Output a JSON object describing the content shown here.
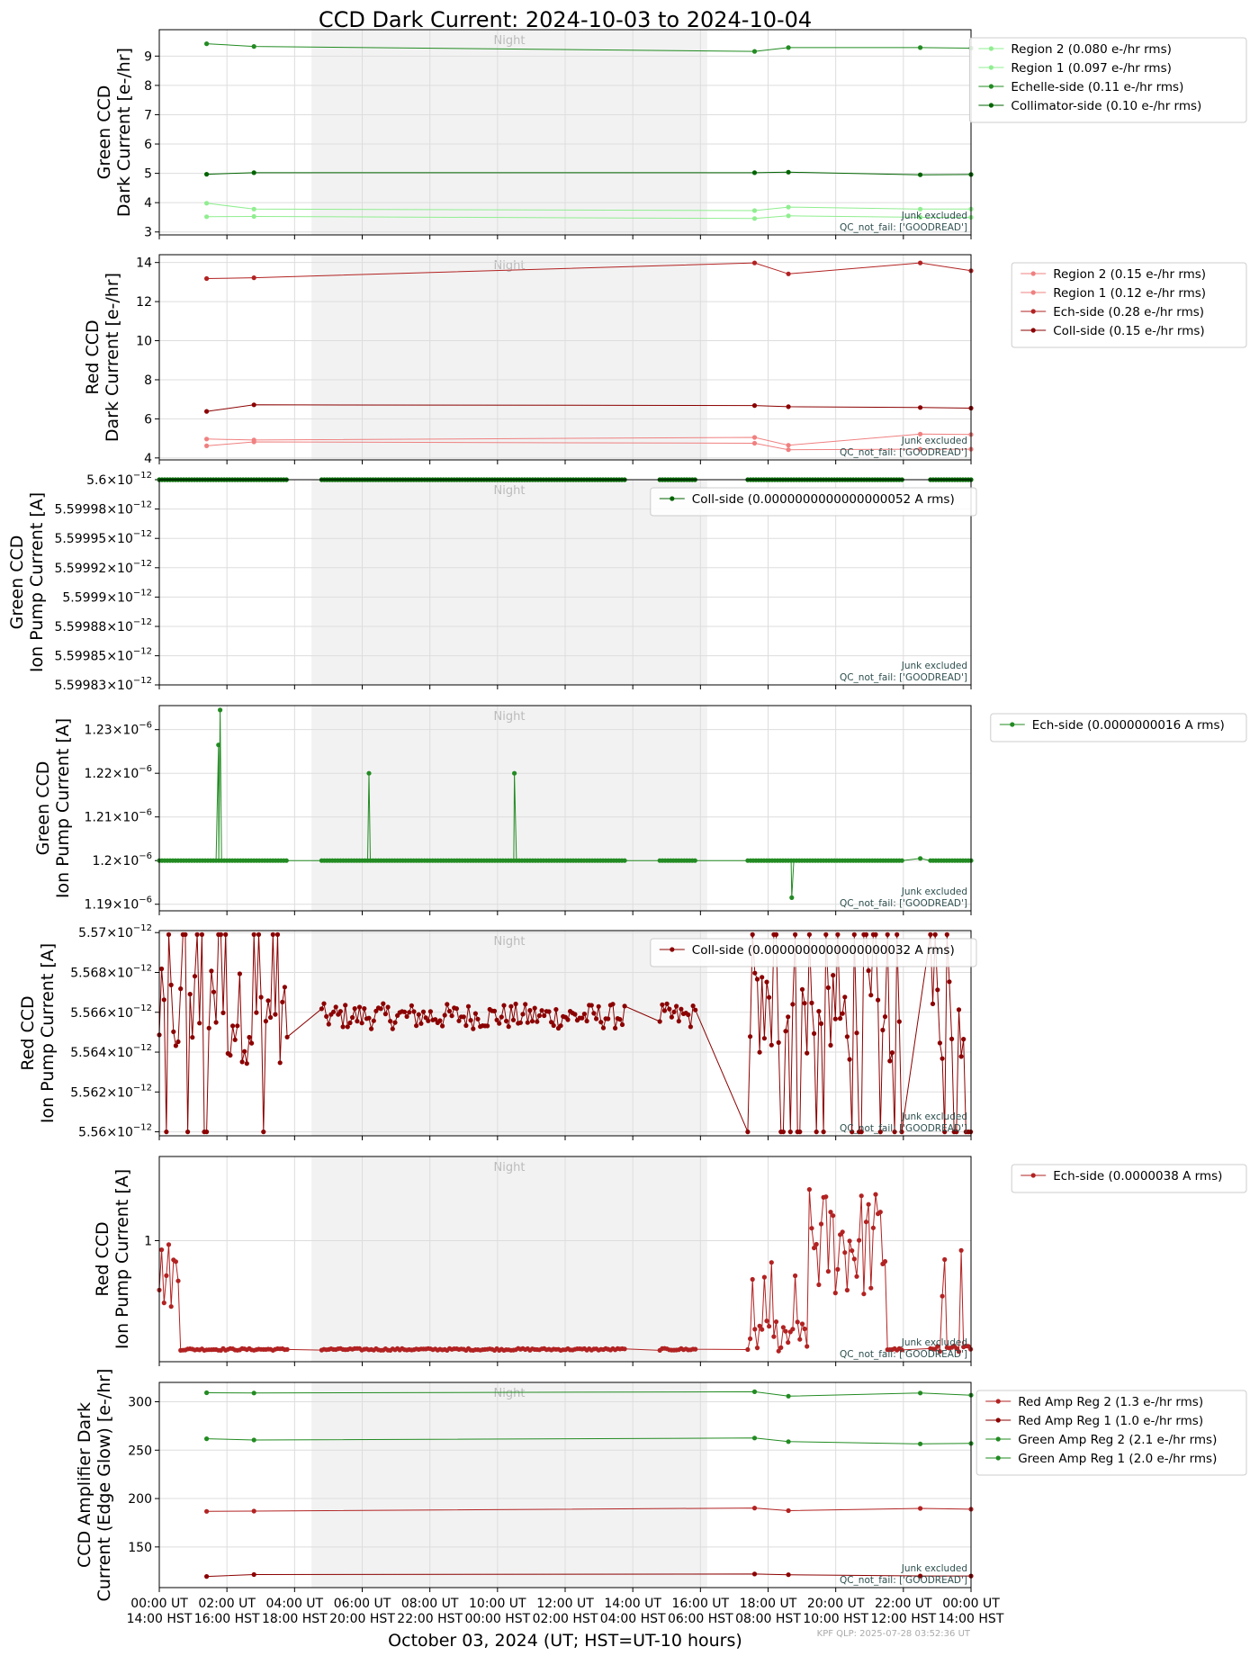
{
  "title": "CCD Dark Current: 2024-10-03 to 2024-10-04",
  "xlabel": "October 03, 2024 (UT; HST=UT-10 hours)",
  "footer": "KPF QLP: 2025-07-28 03:52:36 UT",
  "night_label": "Night",
  "notes": [
    "Junk excluded",
    "QC_not_fail: ['GOODREAD']"
  ],
  "x_ticks_ut": [
    "00:00 UT",
    "02:00 UT",
    "04:00 UT",
    "06:00 UT",
    "08:00 UT",
    "10:00 UT",
    "12:00 UT",
    "14:00 UT",
    "16:00 UT",
    "18:00 UT",
    "20:00 UT",
    "22:00 UT",
    "00:00 UT"
  ],
  "x_ticks_hst": [
    "14:00 HST",
    "16:00 HST",
    "18:00 HST",
    "20:00 HST",
    "22:00 HST",
    "00:00 HST",
    "02:00 HST",
    "04:00 HST",
    "06:00 HST",
    "08:00 HST",
    "10:00 HST",
    "12:00 HST",
    "14:00 HST"
  ],
  "colors": {
    "light_green": "#90ee90",
    "green": "#228b22",
    "dark_green": "#006400",
    "light_red": "#f08080",
    "red": "#b22222",
    "dark_red": "#8b0000",
    "night": "#f2f2f2"
  },
  "chart_data": [
    {
      "type": "line",
      "ylabel": [
        "Green CCD",
        "Dark Current [e-/hr]"
      ],
      "ylim": [
        2.9,
        9.9
      ],
      "yticks": [
        3,
        4,
        5,
        6,
        7,
        8,
        9
      ],
      "legend_placement": "outside-right",
      "night": [
        4.5,
        16.2
      ],
      "series": [
        {
          "name": "Region 2 (0.080 e-/hr rms)",
          "color": "#90ee90",
          "x": [
            1.4,
            2.8,
            17.6,
            18.6,
            22.5,
            24
          ],
          "y": [
            3.52,
            3.53,
            3.46,
            3.55,
            3.5,
            3.5
          ]
        },
        {
          "name": "Region 1 (0.097 e-/hr rms)",
          "color": "#90ee90",
          "x": [
            1.4,
            2.8,
            17.6,
            18.6,
            22.5,
            24
          ],
          "y": [
            3.98,
            3.78,
            3.73,
            3.85,
            3.78,
            3.78
          ]
        },
        {
          "name": "Echelle-side (0.11 e-/hr rms)",
          "color": "#228b22",
          "x": [
            1.4,
            2.8,
            17.6,
            18.6,
            22.5,
            24
          ],
          "y": [
            9.42,
            9.33,
            9.16,
            9.29,
            9.29,
            9.27
          ]
        },
        {
          "name": "Collimator-side (0.10 e-/hr rms)",
          "color": "#006400",
          "x": [
            1.4,
            2.8,
            17.6,
            18.6,
            22.5,
            24
          ],
          "y": [
            4.97,
            5.02,
            5.02,
            5.04,
            4.95,
            4.96
          ]
        }
      ]
    },
    {
      "type": "line",
      "ylabel": [
        "Red CCD",
        "Dark Current [e-/hr]"
      ],
      "ylim": [
        3.9,
        14.4
      ],
      "yticks": [
        4,
        6,
        8,
        10,
        12,
        14
      ],
      "legend_placement": "outside-right",
      "night": [
        4.5,
        16.2
      ],
      "series": [
        {
          "name": "Region 2 (0.15 e-/hr rms)",
          "color": "#f08080",
          "x": [
            1.4,
            2.8,
            17.6,
            18.6,
            22.5,
            24
          ],
          "y": [
            4.97,
            4.92,
            5.05,
            4.65,
            5.22,
            5.2
          ]
        },
        {
          "name": "Region 1 (0.12 e-/hr rms)",
          "color": "#f08080",
          "x": [
            1.4,
            2.8,
            17.6,
            18.6,
            22.5,
            24
          ],
          "y": [
            4.62,
            4.82,
            4.75,
            4.42,
            4.45,
            4.45
          ]
        },
        {
          "name": "Ech-side (0.28 e-/hr rms)",
          "color": "#b22222",
          "x": [
            1.4,
            2.8,
            17.6,
            18.6,
            22.5,
            24
          ],
          "y": [
            13.18,
            13.22,
            13.98,
            13.42,
            13.98,
            13.58
          ]
        },
        {
          "name": "Coll-side (0.15 e-/hr rms)",
          "color": "#8b0000",
          "x": [
            1.4,
            2.8,
            17.6,
            18.6,
            22.5,
            24
          ],
          "y": [
            6.38,
            6.72,
            6.68,
            6.62,
            6.58,
            6.55
          ]
        }
      ]
    },
    {
      "type": "line",
      "ylabel": [
        "Green CCD",
        "Ion Pump Current [A]"
      ],
      "ylim": [
        0.0,
        1.0
      ],
      "ytick_pos": [
        1.0,
        0.857,
        0.714,
        0.571,
        0.428,
        0.285,
        0.142,
        0.0
      ],
      "ytick_mantissa": [
        "5.6",
        "5.59998",
        "5.59995",
        "5.59992",
        "5.5999",
        "5.59988",
        "5.59985",
        "5.59983"
      ],
      "ytick_exp": "−12",
      "legend_placement": "upper-right",
      "night": [
        4.5,
        16.2
      ],
      "series": [
        {
          "name": "Coll-side (0.0000000000000000052 A rms)",
          "color": "#006400",
          "pattern": "flat_dense",
          "level": 1.0,
          "segments": [
            [
              0,
              3.8
            ],
            [
              4.8,
              13.8
            ],
            [
              14.8,
              15.9
            ],
            [
              17.4,
              22.0
            ],
            [
              22.8,
              24
            ]
          ]
        }
      ]
    },
    {
      "type": "line",
      "ylabel": [
        "Green CCD",
        "Ion Pump Current [A]"
      ],
      "ylim": [
        1.1885,
        1.2355
      ],
      "ytick_pos": [
        1.19,
        1.2,
        1.21,
        1.22,
        1.23
      ],
      "ytick_mantissa": [
        "1.19",
        "1.2",
        "1.21",
        "1.22",
        "1.23"
      ],
      "ytick_exp": "−6",
      "legend_placement": "outside-right",
      "night": [
        4.5,
        16.2
      ],
      "series": [
        {
          "name": "Ech-side (0.0000000016 A rms)",
          "color": "#228b22",
          "pattern": "flat_spikes",
          "level": 1.2,
          "segments": [
            [
              0,
              3.8
            ],
            [
              4.8,
              13.8
            ],
            [
              14.8,
              15.9
            ],
            [
              17.4,
              22.0
            ],
            [
              22.8,
              24
            ]
          ],
          "spikes": [
            [
              1.75,
              1.2265
            ],
            [
              1.8,
              1.2345
            ],
            [
              6.2,
              1.22
            ],
            [
              10.5,
              1.22
            ],
            [
              18.7,
              1.1915
            ],
            [
              22.5,
              1.2005
            ]
          ]
        }
      ]
    },
    {
      "type": "line",
      "ylabel": [
        "Red CCD",
        "Ion Pump Current [A]"
      ],
      "ylim": [
        5.5598,
        5.5701
      ],
      "ytick_pos": [
        5.56,
        5.562,
        5.564,
        5.566,
        5.568,
        5.57
      ],
      "ytick_mantissa": [
        "5.56",
        "5.562",
        "5.564",
        "5.566",
        "5.568",
        "5.57"
      ],
      "ytick_exp": "−12",
      "legend_placement": "upper-right",
      "night": [
        4.5,
        16.2
      ],
      "series": [
        {
          "name": "Coll-side (0.0000000000000000032 A rms)",
          "color": "#8b0000",
          "pattern": "noisy",
          "level": 5.5658,
          "amp": 0.0008,
          "segments": [
            [
              0,
              3.8
            ],
            [
              4.8,
              13.8
            ],
            [
              14.8,
              15.9
            ],
            [
              17.4,
              22.0
            ],
            [
              22.8,
              24
            ]
          ]
        }
      ]
    },
    {
      "type": "line",
      "ylabel": [
        "Red CCD",
        "Ion Pump Current [A]"
      ],
      "ylim": [
        0.0,
        1.0
      ],
      "ytick_pos": [
        0.59
      ],
      "ytick_mantissa": [
        "1"
      ],
      "legend_placement": "upper-right",
      "night": [
        4.5,
        16.2
      ],
      "series": [
        {
          "name": "Ech-side (0.0000038 A rms)",
          "color": "#b22222",
          "pattern": "bursty",
          "level": 0.06,
          "segments": [
            [
              0,
              3.8
            ],
            [
              4.8,
              13.8
            ],
            [
              14.8,
              15.9
            ],
            [
              17.4,
              22.0
            ],
            [
              22.8,
              24
            ]
          ]
        }
      ]
    },
    {
      "type": "line",
      "ylabel": [
        "CCD Amplifier Dark",
        "Current (Edge Glow) [e-/hr]"
      ],
      "ylim": [
        108,
        320
      ],
      "yticks": [
        150,
        200,
        250,
        300
      ],
      "legend_placement": "outside-right",
      "night": [
        4.5,
        16.2
      ],
      "series": [
        {
          "name": "Red Amp Reg 2 (1.3 e-/hr rms)",
          "color": "#b22222",
          "x": [
            1.4,
            2.8,
            17.6,
            18.6,
            22.5,
            24
          ],
          "y": [
            186.8,
            187.0,
            190.2,
            187.5,
            189.8,
            189.0
          ]
        },
        {
          "name": "Red Amp Reg 1 (1.0 e-/hr rms)",
          "color": "#8b0000",
          "x": [
            1.4,
            2.8,
            17.6,
            18.6,
            22.5,
            24
          ],
          "y": [
            119.5,
            121.5,
            122.0,
            121.3,
            120.0,
            120.0
          ]
        },
        {
          "name": "Green Amp Reg 2 (2.1 e-/hr rms)",
          "color": "#228b22",
          "x": [
            1.4,
            2.8,
            17.6,
            18.6,
            22.5,
            24
          ],
          "y": [
            261.8,
            260.5,
            262.5,
            258.8,
            256.5,
            257.0
          ]
        },
        {
          "name": "Green Amp Reg 1 (2.0 e-/hr rms)",
          "color": "#228b22",
          "x": [
            1.4,
            2.8,
            17.6,
            18.6,
            22.5,
            24
          ],
          "y": [
            309.3,
            309.0,
            310.3,
            305.8,
            309.0,
            306.8
          ]
        }
      ]
    }
  ]
}
